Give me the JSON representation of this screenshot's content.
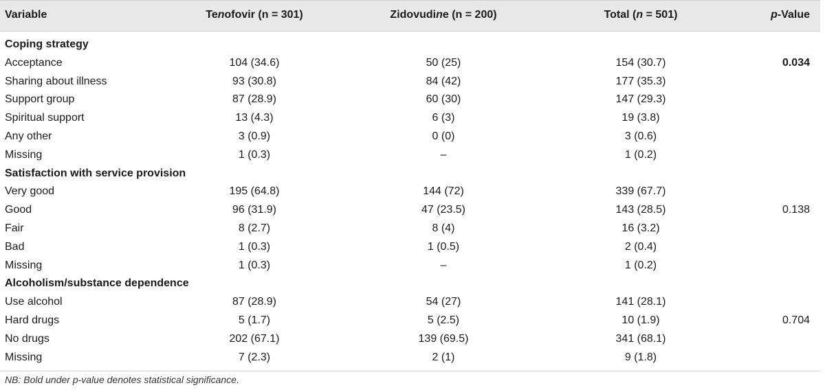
{
  "table": {
    "headers": {
      "variable": "Variable",
      "tenofovir": "Tenofovir (n = 301)",
      "zidovudine": "Zidovudine (n = 200)",
      "total": "Total (n = 501)",
      "pvalue": "p-Value"
    },
    "rows": [
      {
        "type": "section",
        "label": "Coping strategy"
      },
      {
        "type": "data",
        "label": "Acceptance",
        "tenofovir": "104 (34.6)",
        "zidovudine": "50 (25)",
        "total": "154 (30.7)",
        "pvalue": "0.034",
        "pvalue_bold": true
      },
      {
        "type": "data",
        "label": "Sharing about illness",
        "tenofovir": "93 (30.8)",
        "zidovudine": "84 (42)",
        "total": "177 (35.3)",
        "pvalue": ""
      },
      {
        "type": "data",
        "label": "Support group",
        "tenofovir": "87 (28.9)",
        "zidovudine": "60 (30)",
        "total": "147 (29.3)",
        "pvalue": ""
      },
      {
        "type": "data",
        "label": "Spiritual support",
        "tenofovir": "13 (4.3)",
        "zidovudine": "6 (3)",
        "total": "19 (3.8)",
        "pvalue": ""
      },
      {
        "type": "data",
        "label": "Any other",
        "tenofovir": "3 (0.9)",
        "zidovudine": "0 (0)",
        "total": "3 (0.6)",
        "pvalue": ""
      },
      {
        "type": "data",
        "label": "Missing",
        "tenofovir": "1 (0.3)",
        "zidovudine": "–",
        "total": "1 (0.2)",
        "pvalue": ""
      },
      {
        "type": "section",
        "label": "Satisfaction with service provision"
      },
      {
        "type": "data",
        "label": "Very good",
        "tenofovir": "195 (64.8)",
        "zidovudine": "144 (72)",
        "total": "339 (67.7)",
        "pvalue": ""
      },
      {
        "type": "data",
        "label": "Good",
        "tenofovir": "96 (31.9)",
        "zidovudine": "47 (23.5)",
        "total": "143 (28.5)",
        "pvalue": "0.138"
      },
      {
        "type": "data",
        "label": "Fair",
        "tenofovir": "8 (2.7)",
        "zidovudine": "8 (4)",
        "total": "16 (3.2)",
        "pvalue": ""
      },
      {
        "type": "data",
        "label": "Bad",
        "tenofovir": "1 (0.3)",
        "zidovudine": "1 (0.5)",
        "total": "2 (0.4)",
        "pvalue": ""
      },
      {
        "type": "data",
        "label": "Missing",
        "tenofovir": "1 (0.3)",
        "zidovudine": "–",
        "total": "1 (0.2)",
        "pvalue": ""
      },
      {
        "type": "section",
        "label": "Alcoholism/substance dependence"
      },
      {
        "type": "data",
        "label": "Use alcohol",
        "tenofovir": "87 (28.9)",
        "zidovudine": "54 (27)",
        "total": "141 (28.1)",
        "pvalue": ""
      },
      {
        "type": "data",
        "label": "Hard drugs",
        "tenofovir": "5 (1.7)",
        "zidovudine": "5 (2.5)",
        "total": "10 (1.9)",
        "pvalue": "0.704"
      },
      {
        "type": "data",
        "label": "No drugs",
        "tenofovir": "202 (67.1)",
        "zidovudine": "139 (69.5)",
        "total": "341 (68.1)",
        "pvalue": ""
      },
      {
        "type": "data",
        "label": "Missing",
        "tenofovir": "7 (2.3)",
        "zidovudine": "2 (1)",
        "total": "9 (1.8)",
        "pvalue": ""
      }
    ],
    "footnote": "NB: Bold under p-value denotes statistical significance."
  }
}
